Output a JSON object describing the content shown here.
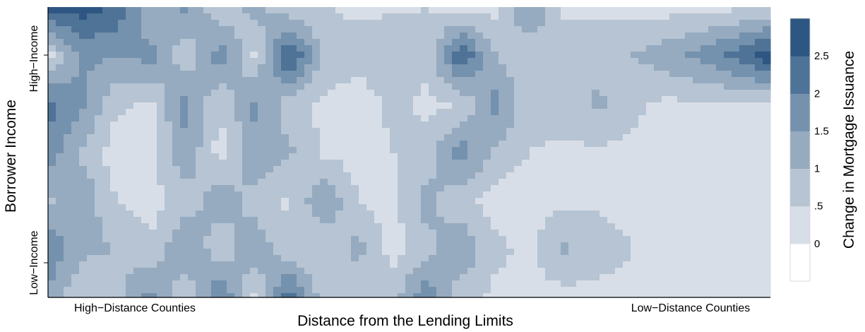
{
  "chart_data": {
    "type": "heatmap",
    "title": "",
    "xlabel": "Distance from the Lending Limits",
    "ylabel": "Borrower Income",
    "x_tick_labels": [
      "High−Distance Counties",
      "Low−Distance Counties"
    ],
    "y_tick_labels": [
      "High−Income",
      "Low−Income"
    ],
    "colorbar": {
      "title": "Change in Mortgage Issuance",
      "tick_labels": [
        "0",
        ".5",
        "1",
        "1.5",
        "2",
        "2.5"
      ],
      "levels": [
        0,
        0.5,
        1,
        1.5,
        2,
        2.5,
        3
      ],
      "colors": [
        "#ffffff",
        "#d8dee7",
        "#b6c4d3",
        "#96abc0",
        "#7491ad",
        "#4f7297",
        "#2e5682",
        "#1b426e"
      ]
    },
    "grid_cols": 22,
    "grid_rows": 7,
    "values": [
      [
        2.7,
        2.8,
        2.4,
        1.0,
        1.6,
        0.6,
        1.2,
        0.6,
        0.5,
        0.4,
        0.4,
        0.5,
        0.3,
        0.3,
        1.6,
        0.5,
        0.4,
        0.3,
        0.3,
        0.3,
        0.4,
        0.4
      ],
      [
        0.3,
        1.6,
        1.5,
        1.7,
        0.6,
        1.8,
        0.4,
        2.7,
        0.9,
        0.7,
        1.0,
        0.6,
        2.5,
        1.0,
        0.6,
        0.5,
        0.8,
        1.0,
        1.3,
        1.7,
        2.2,
        2.9
      ],
      [
        2.2,
        1.6,
        0.6,
        0.4,
        1.7,
        0.5,
        1.6,
        0.7,
        0.4,
        0.2,
        0.6,
        0.4,
        0.5,
        1.7,
        0.6,
        0.8,
        1.1,
        0.6,
        0.4,
        0.4,
        0.4,
        0.4
      ],
      [
        1.8,
        0.9,
        0.2,
        0.4,
        1.4,
        0.3,
        1.4,
        1.1,
        0.4,
        0.3,
        0.5,
        0.7,
        1.8,
        0.9,
        0.5,
        0.4,
        0.4,
        0.4,
        0.3,
        0.3,
        0.3,
        0.3
      ],
      [
        0.9,
        1.4,
        0.5,
        0.3,
        0.7,
        1.3,
        0.8,
        0.4,
        1.5,
        0.5,
        0.3,
        1.2,
        0.6,
        0.3,
        0.2,
        0.4,
        0.4,
        0.3,
        0.3,
        0.3,
        0.2,
        0.2
      ],
      [
        2.0,
        1.1,
        1.0,
        0.6,
        1.6,
        0.6,
        1.4,
        0.6,
        0.5,
        1.2,
        0.3,
        0.8,
        1.5,
        0.6,
        0.4,
        1.1,
        0.8,
        0.5,
        0.4,
        0.4,
        0.3,
        0.3
      ],
      [
        1.3,
        0.6,
        0.8,
        1.7,
        0.5,
        2.1,
        0.4,
        2.4,
        0.7,
        0.5,
        0.8,
        1.9,
        0.6,
        0.4,
        0.3,
        0.3,
        0.3,
        0.3,
        0.3,
        0.3,
        0.3,
        0.3
      ]
    ]
  }
}
